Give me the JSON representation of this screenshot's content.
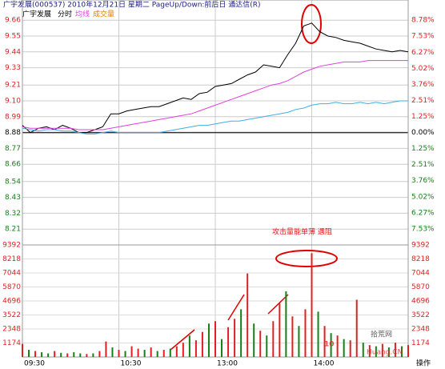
{
  "header": {
    "title": "广宇发展(000537) 2010年12月21日 星期二 PageUp/Down:前后日 通达信(R)",
    "action": "操作"
  },
  "watermark": {
    "number": "10",
    "site": "拾荒网",
    "domain": "Huang.CN"
  },
  "chart_data": {
    "type": "intraday",
    "subtitle": "广宇发展",
    "annotation": "攻击量能单薄 遇阻",
    "up_color": "#e02020",
    "down_color": "#168016",
    "grid": true,
    "xlim": [
      0,
      240
    ],
    "xticks": [
      {
        "value": 0,
        "label": "09:30"
      },
      {
        "value": 60,
        "label": "10:30"
      },
      {
        "value": 120,
        "label": "13:00"
      },
      {
        "value": 180,
        "label": "14:00"
      }
    ],
    "ylim": [
      8.1,
      9.7
    ],
    "yticks": [
      9.66,
      9.55,
      9.44,
      9.33,
      {
        "value": 9.21,
        "label": "9.21"
      },
      {
        "value": 9.1,
        "label": "9.10"
      },
      8.99,
      8.88,
      8.77,
      8.66,
      8.54,
      8.43,
      8.32,
      8.21
    ],
    "y2lim": [
      -8.78,
      9.23
    ],
    "y2ticks": [
      {
        "value": 8.78,
        "label": "8.78%"
      },
      {
        "value": 7.53,
        "label": "7.53%"
      },
      {
        "value": 6.27,
        "label": "6.27%"
      },
      {
        "value": 5.02,
        "label": "5.02%"
      },
      {
        "value": 3.76,
        "label": "3.76%"
      },
      {
        "value": 2.51,
        "label": "2.51%"
      },
      {
        "value": 1.25,
        "label": "1.25%"
      },
      {
        "value": 0,
        "label": "0.00%"
      },
      {
        "value": -1.25,
        "label": "1.25%"
      },
      {
        "value": -2.51,
        "label": "2.51%"
      },
      {
        "value": -3.76,
        "label": "3.76%"
      },
      {
        "value": -5.02,
        "label": "5.02%"
      },
      {
        "value": -6.27,
        "label": "6.27%"
      },
      {
        "value": -7.53,
        "label": "7.53%"
      }
    ],
    "x": [
      0,
      5,
      10,
      15,
      20,
      25,
      30,
      35,
      40,
      45,
      50,
      55,
      60,
      65,
      70,
      75,
      80,
      85,
      90,
      95,
      100,
      105,
      110,
      115,
      120,
      125,
      130,
      135,
      140,
      145,
      150,
      155,
      160,
      165,
      170,
      175,
      180,
      185,
      190,
      195,
      200,
      205,
      210,
      215,
      220,
      225,
      230,
      235,
      240
    ],
    "series": [
      {
        "name": "分时",
        "color": "#000000",
        "values": [
          8.93,
          8.88,
          8.91,
          8.92,
          8.9,
          8.93,
          8.91,
          8.88,
          8.88,
          8.9,
          8.92,
          9.01,
          9.01,
          9.03,
          9.04,
          9.05,
          9.06,
          9.06,
          9.08,
          9.1,
          9.12,
          9.11,
          9.15,
          9.16,
          9.2,
          9.21,
          9.22,
          9.25,
          9.28,
          9.3,
          9.35,
          9.34,
          9.33,
          9.42,
          9.5,
          9.62,
          9.64,
          9.58,
          9.55,
          9.54,
          9.52,
          9.51,
          9.5,
          9.48,
          9.46,
          9.45,
          9.44,
          9.45,
          9.44
        ]
      },
      {
        "name": "均线",
        "color": "#e040e0",
        "values": [
          8.92,
          8.91,
          8.91,
          8.91,
          8.91,
          8.91,
          8.91,
          8.9,
          8.9,
          8.9,
          8.9,
          8.91,
          8.92,
          8.93,
          8.94,
          8.95,
          8.96,
          8.97,
          8.98,
          8.99,
          9.0,
          9.01,
          9.03,
          9.05,
          9.07,
          9.09,
          9.11,
          9.13,
          9.15,
          9.17,
          9.19,
          9.21,
          9.22,
          9.24,
          9.27,
          9.3,
          9.32,
          9.34,
          9.35,
          9.36,
          9.37,
          9.37,
          9.37,
          9.38,
          9.38,
          9.38,
          9.38,
          9.38,
          9.38
        ]
      },
      {
        "color": "#40b0e0",
        "values": [
          8.91,
          8.9,
          8.89,
          8.9,
          8.9,
          8.89,
          8.89,
          8.88,
          8.87,
          8.87,
          8.88,
          8.89,
          8.88,
          8.88,
          8.88,
          8.88,
          8.88,
          8.88,
          8.89,
          8.9,
          8.91,
          8.92,
          8.93,
          8.93,
          8.94,
          8.95,
          8.96,
          8.96,
          8.97,
          8.98,
          8.99,
          9.0,
          9.01,
          9.02,
          9.04,
          9.05,
          9.07,
          9.08,
          9.08,
          9.09,
          9.08,
          9.08,
          9.09,
          9.08,
          9.09,
          9.08,
          9.09,
          9.1,
          9.1
        ]
      }
    ],
    "volume": {
      "name": "成交量",
      "ylim": [
        0,
        9392
      ],
      "yticks": [
        1174,
        2348,
        3522,
        4696,
        5870,
        7044,
        8218,
        9392
      ],
      "x": [
        0,
        4,
        8,
        12,
        16,
        20,
        24,
        28,
        32,
        36,
        40,
        44,
        48,
        52,
        56,
        60,
        64,
        68,
        72,
        76,
        80,
        84,
        88,
        92,
        96,
        100,
        104,
        108,
        112,
        116,
        120,
        124,
        128,
        132,
        136,
        140,
        144,
        148,
        152,
        156,
        160,
        164,
        168,
        172,
        176,
        180,
        184,
        188,
        192,
        196,
        200,
        204,
        208,
        212,
        216,
        220,
        224,
        228,
        232,
        236,
        240
      ],
      "values": [
        1100,
        600,
        500,
        400,
        300,
        500,
        350,
        300,
        400,
        300,
        250,
        300,
        500,
        1300,
        800,
        600,
        500,
        900,
        700,
        600,
        800,
        500,
        600,
        700,
        900,
        1200,
        1800,
        1400,
        2100,
        2800,
        3000,
        1500,
        2500,
        3200,
        4000,
        7000,
        2800,
        2200,
        1800,
        3000,
        4500,
        5500,
        3400,
        2600,
        4000,
        8700,
        3800,
        2600,
        2000,
        1800,
        1500,
        1400,
        4800,
        1200,
        1000,
        900,
        1100,
        800,
        1200,
        900,
        1000
      ],
      "colors": [
        "#e02020",
        "#168016",
        "#e02020",
        "#168016",
        "#168016",
        "#e02020",
        "#168016",
        "#e02020",
        "#168016",
        "#168016",
        "#e02020",
        "#168016",
        "#e02020",
        "#e02020",
        "#168016",
        "#e02020",
        "#168016",
        "#e02020",
        "#e02020",
        "#168016",
        "#e02020",
        "#168016",
        "#e02020",
        "#168016",
        "#e02020",
        "#e02020",
        "#168016",
        "#e02020",
        "#e02020",
        "#168016",
        "#e02020",
        "#168016",
        "#e02020",
        "#e02020",
        "#168016",
        "#e02020",
        "#168016",
        "#e02020",
        "#168016",
        "#e02020",
        "#e02020",
        "#168016",
        "#e02020",
        "#168016",
        "#e02020",
        "#e02020",
        "#168016",
        "#e02020",
        "#168016",
        "#e02020",
        "#168016",
        "#e02020",
        "#e02020",
        "#168016",
        "#e02020",
        "#168016",
        "#e02020",
        "#168016",
        "#e02020",
        "#168016",
        "#e02020"
      ]
    }
  }
}
